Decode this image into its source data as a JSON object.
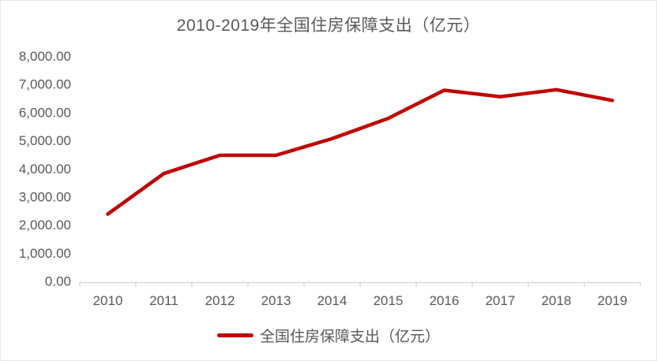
{
  "chart_data": {
    "type": "line",
    "title": "2010-2019年全国住房保障支出（亿元）",
    "categories": [
      "2010",
      "2011",
      "2012",
      "2013",
      "2014",
      "2015",
      "2016",
      "2017",
      "2018",
      "2019"
    ],
    "series": [
      {
        "name": "全国住房保障支出（亿元）",
        "values": [
          2380,
          3820,
          4470,
          4470,
          5060,
          5780,
          6780,
          6550,
          6800,
          6420
        ],
        "color": "#c00000"
      }
    ],
    "xlabel": "",
    "ylabel": "",
    "ylim": [
      0,
      8000
    ],
    "ytick_step": 1000,
    "ytick_labels": [
      "0.00",
      "1,000.00",
      "2,000.00",
      "3,000.00",
      "4,000.00",
      "5,000.00",
      "6,000.00",
      "7,000.00",
      "8,000.00"
    ],
    "grid": false,
    "legend_position": "bottom"
  },
  "colors": {
    "series_line": "#c00000",
    "axis_line": "#d6d6d6",
    "tick_text": "#595959",
    "title_text": "#595959",
    "background": "#ffffff"
  }
}
